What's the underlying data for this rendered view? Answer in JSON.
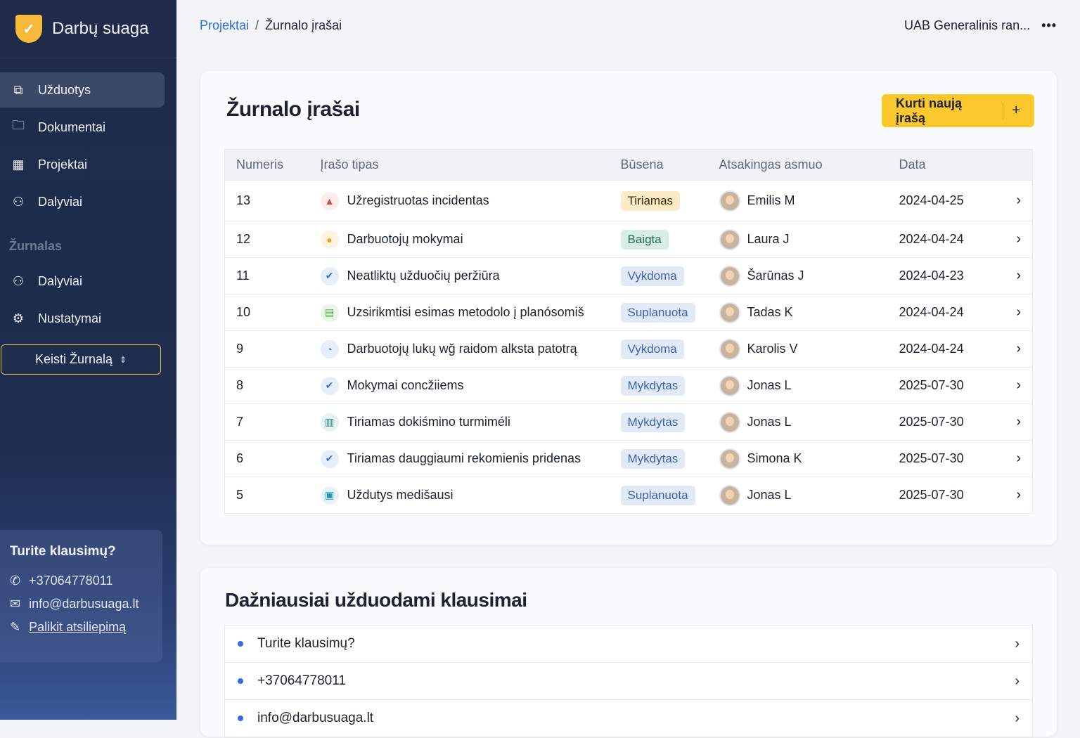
{
  "app": {
    "name": "Darbų suaga"
  },
  "sidebar": {
    "items": [
      {
        "label": "Užduotys",
        "icon": "tasks-icon"
      },
      {
        "label": "Dokumentai",
        "icon": "folder-icon"
      },
      {
        "label": "Projektai",
        "icon": "projects-icon"
      },
      {
        "label": "Dalyviai",
        "icon": "users-icon"
      }
    ],
    "section": "Žurnalas",
    "section_items": [
      {
        "label": "Dalyviai",
        "icon": "users-icon"
      },
      {
        "label": "Nustatymai",
        "icon": "gear-icon"
      }
    ],
    "switch_label": "Keisti Žurnalą"
  },
  "help": {
    "title": "Turite klausimų?",
    "phone": "+37064778011",
    "email": "info@darbusuaga.lt",
    "feedback": "Palikit atsiliepimą"
  },
  "header": {
    "breadcrumb": [
      "Projektai",
      "Žurnalo įrašai"
    ],
    "org": "UAB Generalinis ran..."
  },
  "main": {
    "title": "Žurnalo įrašai",
    "new_button": "Kurti naują įrašą",
    "columns": [
      "Numeris",
      "Įrašo tipas",
      "Būsena",
      "Atsakingas asmuo",
      "Data"
    ],
    "rows": [
      {
        "num": "13",
        "type": "Užregistruotas incidentas",
        "icon": "warning-icon",
        "status": "Tiriamas",
        "person": "Emilis M",
        "date": "2024-04-25"
      },
      {
        "num": "12",
        "type": "Darbuotojų mokymai",
        "icon": "person-icon",
        "status": "Baigta",
        "person": "Laura J",
        "date": "2024-04-24"
      },
      {
        "num": "11",
        "type": "Neatliktų užduočių peržiūra",
        "icon": "check-icon",
        "status": "Vykdoma",
        "person": "Šarūnas J",
        "date": "2024-04-23"
      },
      {
        "num": "10",
        "type": "Uzsirikmtisi esimas metodolo į planósomiš",
        "icon": "document-icon",
        "status": "Suplanuota",
        "person": "Tadas K",
        "date": "2024-04-24"
      },
      {
        "num": "9",
        "type": "Darbuotojų lukų wğ raidom alksta patotrą",
        "icon": "clock-icon",
        "status": "Vykdoma",
        "person": "Karolis V",
        "date": "2024-04-24"
      },
      {
        "num": "8",
        "type": "Mokymai concžiiems",
        "icon": "check-icon",
        "status": "Mykdytas",
        "person": "Jonas L",
        "date": "2025-07-30"
      },
      {
        "num": "7",
        "type": "Tiriamas dokiśmino turmiméli",
        "icon": "chart-icon",
        "status": "Mykdytas",
        "person": "Jonas L",
        "date": "2025-07-30"
      },
      {
        "num": "6",
        "type": "Tiriamas dauggiaumi rekomienis pridenas",
        "icon": "check-icon",
        "status": "Mykdytas",
        "person": "Simona K",
        "date": "2025-07-30"
      },
      {
        "num": "5",
        "type": "Uždutys medišausi",
        "icon": "briefcase-icon",
        "status": "Suplanuota",
        "person": "Jonas L",
        "date": "2025-07-30"
      }
    ]
  },
  "faq": {
    "title": "Dažniausiai užduodami klausimai",
    "items": [
      "Turite klausimų?",
      "+37064778011",
      "info@darbusuaga.lt"
    ]
  },
  "colors": {
    "accent": "#fbc82e",
    "link": "#2f6fe0",
    "sidebar": "#1f2b48"
  }
}
